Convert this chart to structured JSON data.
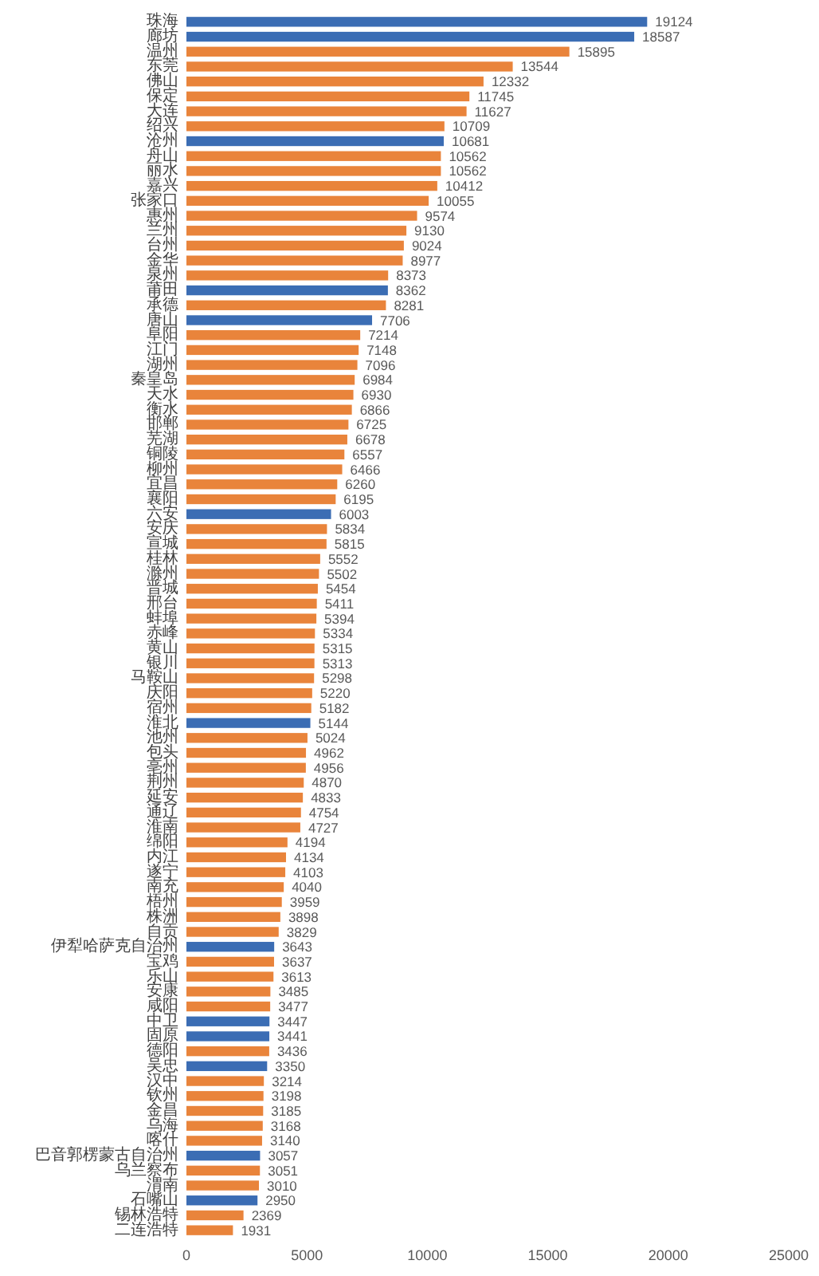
{
  "chart_data": {
    "type": "bar",
    "orientation": "horizontal",
    "categories": [
      "珠海",
      "廊坊",
      "温州",
      "东莞",
      "佛山",
      "保定",
      "大连",
      "绍兴",
      "沧州",
      "舟山",
      "丽水",
      "嘉兴",
      "张家口",
      "惠州",
      "兰州",
      "台州",
      "金华",
      "泉州",
      "莆田",
      "承德",
      "唐山",
      "阜阳",
      "江门",
      "湖州",
      "秦皇岛",
      "天水",
      "衡水",
      "邯郸",
      "芜湖",
      "铜陵",
      "柳州",
      "宜昌",
      "襄阳",
      "六安",
      "安庆",
      "宣城",
      "桂林",
      "滁州",
      "晋城",
      "邢台",
      "蚌埠",
      "赤峰",
      "黄山",
      "银川",
      "马鞍山",
      "庆阳",
      "宿州",
      "淮北",
      "池州",
      "包头",
      "亳州",
      "荆州",
      "延安",
      "通辽",
      "淮南",
      "绵阳",
      "内江",
      "遂宁",
      "南充",
      "梧州",
      "株洲",
      "自贡",
      "伊犁哈萨克自治州",
      "宝鸡",
      "乐山",
      "安康",
      "咸阳",
      "中卫",
      "固原",
      "德阳",
      "吴忠",
      "汉中",
      "钦州",
      "金昌",
      "乌海",
      "喀什",
      "巴音郭楞蒙古自治州",
      "乌兰察布",
      "渭南",
      "石嘴山",
      "锡林浩特",
      "二连浩特"
    ],
    "values": [
      19124,
      18587,
      15895,
      13544,
      12332,
      11745,
      11627,
      10709,
      10681,
      10562,
      10562,
      10412,
      10055,
      9574,
      9130,
      9024,
      8977,
      8373,
      8362,
      8281,
      7706,
      7214,
      7148,
      7096,
      6984,
      6930,
      6866,
      6725,
      6678,
      6557,
      6466,
      6260,
      6195,
      6003,
      5834,
      5815,
      5552,
      5502,
      5454,
      5411,
      5394,
      5334,
      5315,
      5313,
      5298,
      5220,
      5182,
      5144,
      5024,
      4962,
      4956,
      4870,
      4833,
      4754,
      4727,
      4194,
      4134,
      4103,
      4040,
      3959,
      3898,
      3829,
      3643,
      3637,
      3613,
      3485,
      3477,
      3447,
      3441,
      3436,
      3350,
      3214,
      3198,
      3185,
      3168,
      3140,
      3057,
      3051,
      3010,
      2950,
      2369,
      1931
    ],
    "colors": [
      "#3b6db4",
      "#3b6db4",
      "#e9843b",
      "#e9843b",
      "#e9843b",
      "#e9843b",
      "#e9843b",
      "#e9843b",
      "#3b6db4",
      "#e9843b",
      "#e9843b",
      "#e9843b",
      "#e9843b",
      "#e9843b",
      "#e9843b",
      "#e9843b",
      "#e9843b",
      "#e9843b",
      "#3b6db4",
      "#e9843b",
      "#3b6db4",
      "#e9843b",
      "#e9843b",
      "#e9843b",
      "#e9843b",
      "#e9843b",
      "#e9843b",
      "#e9843b",
      "#e9843b",
      "#e9843b",
      "#e9843b",
      "#e9843b",
      "#e9843b",
      "#3b6db4",
      "#e9843b",
      "#e9843b",
      "#e9843b",
      "#e9843b",
      "#e9843b",
      "#e9843b",
      "#e9843b",
      "#e9843b",
      "#e9843b",
      "#e9843b",
      "#e9843b",
      "#e9843b",
      "#e9843b",
      "#3b6db4",
      "#e9843b",
      "#e9843b",
      "#e9843b",
      "#e9843b",
      "#e9843b",
      "#e9843b",
      "#e9843b",
      "#e9843b",
      "#e9843b",
      "#e9843b",
      "#e9843b",
      "#e9843b",
      "#e9843b",
      "#e9843b",
      "#3b6db4",
      "#e9843b",
      "#e9843b",
      "#e9843b",
      "#e9843b",
      "#3b6db4",
      "#3b6db4",
      "#e9843b",
      "#3b6db4",
      "#e9843b",
      "#e9843b",
      "#e9843b",
      "#e9843b",
      "#e9843b",
      "#3b6db4",
      "#e9843b",
      "#e9843b",
      "#3b6db4",
      "#e9843b",
      "#e9843b"
    ],
    "xlim": [
      0,
      25000
    ],
    "xticks": [
      0,
      5000,
      10000,
      15000,
      20000,
      25000
    ],
    "data_labels": true
  }
}
